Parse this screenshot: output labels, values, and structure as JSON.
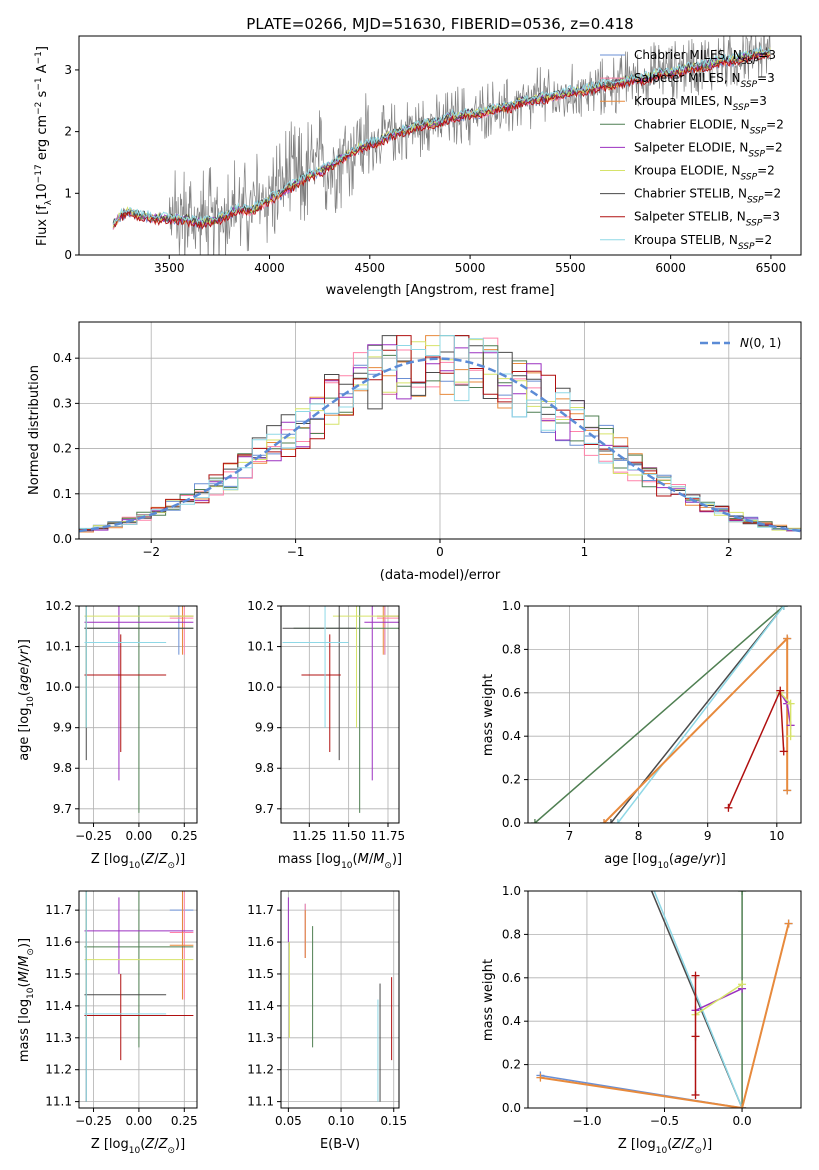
{
  "title": "PLATE=0266, MJD=51630, FIBERID=0536, z=0.418",
  "models": [
    {
      "name": "Chabrier MILES",
      "nssp": "3",
      "color": "#6a8fd4"
    },
    {
      "name": "Salpeter MILES",
      "nssp": "3",
      "color": "#ff82a9"
    },
    {
      "name": "Kroupa MILES",
      "nssp": "3",
      "color": "#e88a3c"
    },
    {
      "name": "Chabrier ELODIE",
      "nssp": "2",
      "color": "#4f7f52"
    },
    {
      "name": "Salpeter ELODIE",
      "nssp": "2",
      "color": "#9b30c0"
    },
    {
      "name": "Kroupa ELODIE",
      "nssp": "2",
      "color": "#d6e36a"
    },
    {
      "name": "Chabrier STELIB",
      "nssp": "2",
      "color": "#4a4a4a"
    },
    {
      "name": "Salpeter STELIB",
      "nssp": "3",
      "color": "#b01010"
    },
    {
      "name": "Kroupa STELIB",
      "nssp": "2",
      "color": "#8fd8e6"
    }
  ],
  "chart_data": [
    {
      "id": "spectrum",
      "type": "line",
      "xlabel": "wavelength [Angstrom, rest frame]",
      "ylabel": "Flux [f_λ 10^-17 erg cm^-2 s^-1 A^-1]",
      "xlim": [
        3050,
        6650
      ],
      "ylim": [
        0,
        3.55
      ],
      "xticks": [
        3500,
        4000,
        4500,
        5000,
        5500,
        6000,
        6500
      ],
      "yticks": [
        0,
        1,
        2,
        3
      ],
      "data_x": [
        3220,
        3260,
        3300,
        3350,
        3400,
        3450,
        3500,
        3550,
        3600,
        3650,
        3700,
        3750,
        3800,
        3850,
        3900,
        3950,
        4000,
        4050,
        4100,
        4150,
        4200,
        4250,
        4300,
        4350,
        4400,
        4450,
        4500,
        4550,
        4600,
        4650,
        4700,
        4750,
        4800,
        4850,
        4900,
        4950,
        5000,
        5050,
        5100,
        5150,
        5200,
        5250,
        5300,
        5350,
        5400,
        5450,
        5500,
        5550,
        5600,
        5650,
        5700,
        5750,
        5800,
        5850,
        5900,
        5950,
        6000,
        6050,
        6100,
        6150,
        6200,
        6250,
        6300,
        6350,
        6400,
        6450,
        6500
      ],
      "data_y": [
        0.5,
        0.6,
        0.7,
        0.62,
        0.65,
        0.6,
        0.58,
        0.6,
        0.62,
        0.5,
        0.55,
        0.6,
        0.75,
        0.8,
        0.7,
        0.85,
        1.0,
        1.1,
        1.3,
        1.2,
        1.4,
        1.5,
        1.4,
        1.6,
        1.7,
        1.9,
        1.8,
        1.9,
        2.0,
        1.95,
        2.1,
        2.05,
        2.2,
        2.1,
        2.2,
        2.3,
        2.2,
        2.3,
        2.4,
        2.3,
        2.4,
        2.5,
        2.4,
        2.6,
        2.5,
        2.55,
        2.6,
        2.7,
        2.65,
        2.7,
        2.8,
        2.75,
        2.9,
        2.85,
        2.95,
        3.0,
        2.95,
        3.05,
        3.1,
        3.05,
        3.15,
        3.2,
        3.1,
        3.25,
        3.3,
        3.3,
        3.35
      ],
      "model_y": [
        0.5,
        0.65,
        0.72,
        0.64,
        0.62,
        0.6,
        0.6,
        0.6,
        0.57,
        0.53,
        0.55,
        0.6,
        0.68,
        0.75,
        0.72,
        0.8,
        0.9,
        1.0,
        1.1,
        1.2,
        1.3,
        1.35,
        1.45,
        1.55,
        1.65,
        1.75,
        1.8,
        1.85,
        1.95,
        2.0,
        2.05,
        2.1,
        2.15,
        2.15,
        2.25,
        2.25,
        2.3,
        2.3,
        2.35,
        2.4,
        2.4,
        2.5,
        2.5,
        2.55,
        2.55,
        2.6,
        2.65,
        2.65,
        2.7,
        2.75,
        2.75,
        2.8,
        2.85,
        2.85,
        2.9,
        2.95,
        2.95,
        3.0,
        3.05,
        3.05,
        3.1,
        3.15,
        3.15,
        3.2,
        3.25,
        3.28,
        3.3
      ],
      "legend_nssp_prefix": "N",
      "legend_nssp_sub": "SSP"
    },
    {
      "id": "residuals",
      "type": "histogram",
      "xlabel": "(data-model)/error",
      "ylabel": "Normed distribution",
      "xlim": [
        -2.5,
        2.5
      ],
      "ylim": [
        0,
        0.48
      ],
      "xticks": [
        -2,
        -1,
        0,
        1,
        2
      ],
      "yticks": [
        0,
        0.1,
        0.2,
        0.3,
        0.4
      ],
      "bin_width": 0.1,
      "gauss_label": "N(0,1)",
      "gauss_color": "#5b8bd6"
    },
    {
      "id": "age_vs_Z",
      "type": "errorbar",
      "xlabel": "Z [log10(Z/Z_sun)]",
      "ylabel": "age [log10(age/yr)]",
      "xlim": [
        -0.33,
        0.32
      ],
      "ylim": [
        9.665,
        10.2
      ],
      "xticks": [
        -0.25,
        0,
        0.25
      ],
      "yticks": [
        9.7,
        9.8,
        9.9,
        10.0,
        10.1,
        10.2
      ]
    },
    {
      "id": "age_vs_mass",
      "type": "errorbar",
      "xlabel": "mass [log10(M/M_sun)]",
      "xlim": [
        11.07,
        11.82
      ],
      "ylim": [
        9.665,
        10.2
      ],
      "xticks": [
        11.25,
        11.5,
        11.75
      ],
      "yticks": [
        9.7,
        9.8,
        9.9,
        10.0,
        10.1,
        10.2
      ]
    },
    {
      "id": "weight_vs_age",
      "type": "line",
      "xlabel": "age [log10(age/yr)]",
      "ylabel": "mass weight",
      "xlim": [
        6.4,
        10.35
      ],
      "ylim": [
        0,
        1.0
      ],
      "xticks": [
        7,
        8,
        9,
        10
      ],
      "yticks": [
        0,
        0.2,
        0.4,
        0.6,
        0.8,
        1.0
      ]
    },
    {
      "id": "mass_vs_Z",
      "type": "errorbar",
      "xlabel": "Z [log10(Z/Z_sun)]",
      "ylabel": "mass [log10(M/M_sun)]",
      "xlim": [
        -0.33,
        0.32
      ],
      "ylim": [
        11.08,
        11.76
      ],
      "xticks": [
        -0.25,
        0,
        0.25
      ],
      "yticks": [
        11.1,
        11.2,
        11.3,
        11.4,
        11.5,
        11.6,
        11.7
      ]
    },
    {
      "id": "mass_vs_ebv",
      "type": "errorbar",
      "xlabel": "E(B-V)",
      "xlim": [
        0.043,
        0.155
      ],
      "ylim": [
        11.08,
        11.76
      ],
      "xticks": [
        0.05,
        0.1,
        0.15
      ],
      "yticks": [
        11.1,
        11.2,
        11.3,
        11.4,
        11.5,
        11.6,
        11.7
      ]
    },
    {
      "id": "weight_vs_Z",
      "type": "line",
      "xlabel": "Z [log10(Z/Z_sun)]",
      "ylabel": "mass weight",
      "xlim": [
        -1.38,
        0.38
      ],
      "ylim": [
        0,
        1.0
      ],
      "xticks": [
        -1.0,
        -0.5,
        0.0
      ],
      "yticks": [
        0,
        0.2,
        0.4,
        0.6,
        0.8,
        1.0
      ]
    }
  ]
}
